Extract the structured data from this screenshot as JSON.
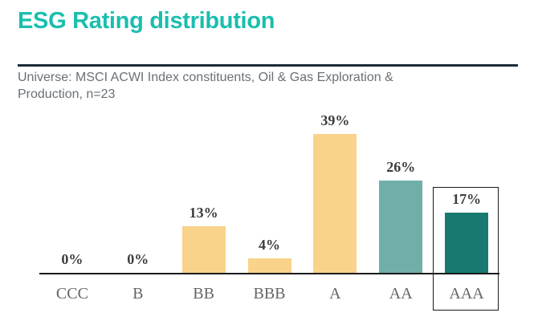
{
  "header": {
    "title": "ESG Rating distribution",
    "subtitle_line1": "Universe: MSCI ACWI Index constituents, Oil & Gas Exploration &",
    "subtitle_line2": "Production, n=23"
  },
  "colors": {
    "title": "#19BEAE",
    "underline": "#1C2B39",
    "subtitle": "#6A7076",
    "axis": "#1A1A1A",
    "value_label": "#3D3D3D",
    "category_label": "#666666",
    "bar_default": "#F9D28B",
    "bar_aa": "#71AEA9",
    "bar_aaa": "#17796F",
    "highlight_border": "#1A1A1A"
  },
  "chart_data": {
    "type": "bar",
    "title": "ESG Rating distribution",
    "subtitle": "Universe: MSCI ACWI Index constituents, Oil & Gas Exploration & Production, n=23",
    "categories": [
      "CCC",
      "B",
      "BB",
      "BBB",
      "A",
      "AA",
      "AAA"
    ],
    "values": [
      0,
      0,
      13,
      4,
      39,
      26,
      17
    ],
    "value_labels": [
      "0%",
      "0%",
      "13%",
      "4%",
      "39%",
      "26%",
      "17%"
    ],
    "bar_colors": [
      "#F9D28B",
      "#F9D28B",
      "#F9D28B",
      "#F9D28B",
      "#F9D28B",
      "#71AEA9",
      "#17796F"
    ],
    "highlighted_category": "AAA",
    "highlight_index": 6,
    "xlabel": "",
    "ylabel": "",
    "ylim": [
      0,
      45
    ],
    "grid": false,
    "legend": false,
    "data_labels": true
  }
}
